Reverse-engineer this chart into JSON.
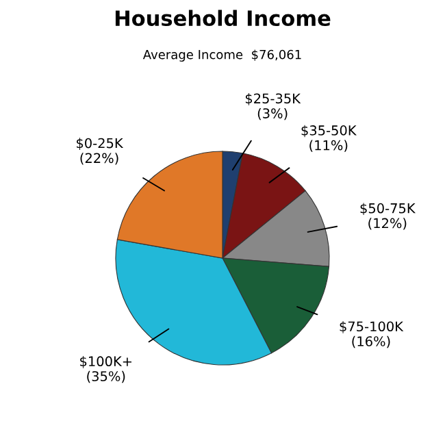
{
  "chart_data": {
    "type": "pie",
    "title": "Household Income",
    "subtitle": "Average Income  $76,061",
    "categories": [
      "$25-35K",
      "$35-50K",
      "$50-75K",
      "$75-100K",
      "$100K+",
      "$0-25K"
    ],
    "values": [
      3,
      11,
      12,
      16,
      35,
      22
    ],
    "value_labels": [
      "(3%)",
      "(11%)",
      "(12%)",
      "(16%)",
      "(35%)",
      "(22%)"
    ],
    "colors": [
      "#1f3f6f",
      "#7a1414",
      "#888888",
      "#1a5e38",
      "#22b8d8",
      "#e07828"
    ]
  }
}
